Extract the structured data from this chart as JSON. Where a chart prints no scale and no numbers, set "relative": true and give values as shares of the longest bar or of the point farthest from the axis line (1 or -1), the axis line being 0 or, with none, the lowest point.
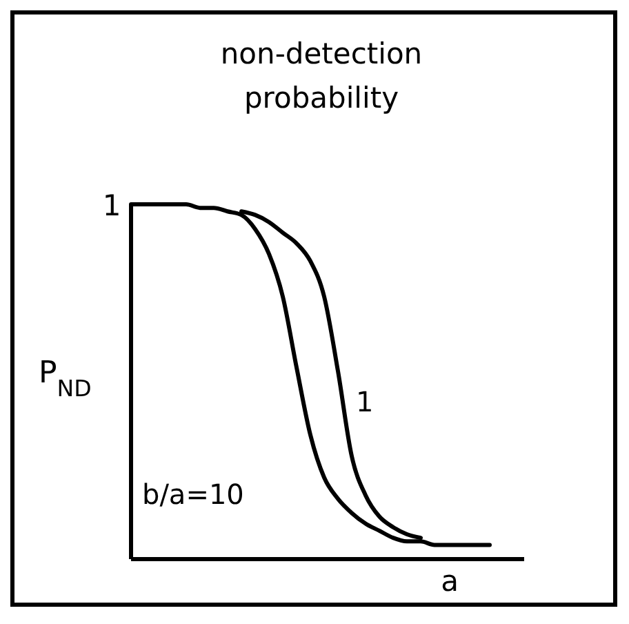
{
  "chart_data": {
    "type": "line",
    "title": "non-detection probability",
    "ylabel": "P$_{ND}$",
    "xlabel": "a",
    "relative": true,
    "categories": [
      null,
      null,
      null,
      null,
      null,
      null,
      null,
      null,
      null,
      null,
      null,
      null,
      null,
      null,
      null,
      null,
      null,
      null,
      null,
      null,
      null,
      null,
      null,
      null,
      null,
      null,
      null
    ],
    "series": [
      {
        "name": "b/a=10",
        "color": "#000000",
        "values": [
          1,
          1,
          1,
          1,
          1,
          0.99,
          0.99,
          0.98,
          0.97,
          0.93,
          0.86,
          0.74,
          0.54,
          0.35,
          0.23,
          0.17,
          0.13,
          0.1,
          0.08,
          0.06,
          0.05,
          0.05,
          0.04,
          0.04,
          0.04,
          0.04,
          0.04
        ]
      },
      {
        "name": "1",
        "color": "#000000",
        "values": [
          null,
          null,
          null,
          null,
          null,
          null,
          null,
          null,
          0.98,
          0.97,
          0.95,
          0.92,
          0.89,
          0.84,
          0.74,
          0.53,
          0.29,
          0.18,
          0.12,
          0.09,
          0.07,
          0.06,
          null,
          null,
          null,
          null,
          null
        ]
      }
    ],
    "annotations": [
      "1"
    ],
    "legend": false,
    "marker": "none",
    "line_style": "solid"
  }
}
